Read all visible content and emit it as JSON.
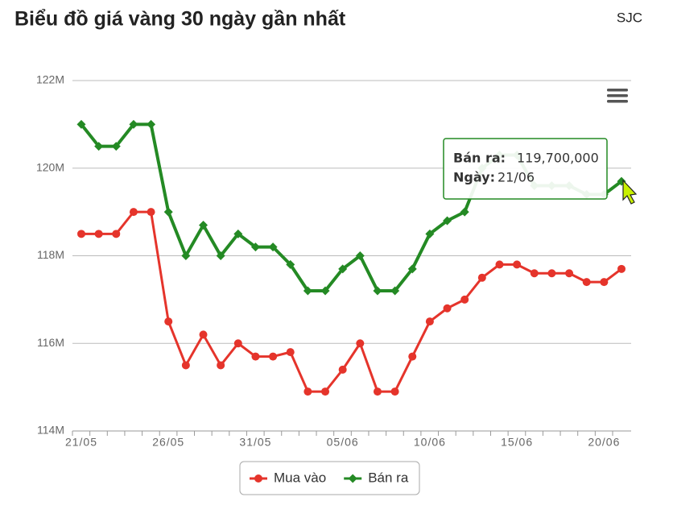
{
  "header": {
    "title": "Biểu đồ giá vàng 30 ngày gần nhất",
    "source": "SJC"
  },
  "chart_data": {
    "type": "line",
    "categories": [
      "21/05",
      null,
      null,
      null,
      null,
      "26/05",
      null,
      null,
      null,
      null,
      "31/05",
      null,
      null,
      null,
      null,
      "05/06",
      null,
      null,
      null,
      null,
      "10/06",
      null,
      null,
      null,
      null,
      "15/06",
      null,
      null,
      null,
      null,
      "20/06",
      null
    ],
    "series": [
      {
        "name": "Mua vào",
        "color": "#e5342b",
        "marker": "circle",
        "values": [
          118.5,
          118.5,
          118.5,
          119.0,
          119.0,
          116.5,
          115.5,
          116.2,
          115.5,
          116.0,
          115.7,
          115.7,
          115.8,
          114.9,
          114.9,
          115.4,
          116.0,
          114.9,
          114.9,
          115.7,
          116.5,
          116.8,
          117.0,
          117.5,
          117.8,
          117.8,
          117.6,
          117.6,
          117.6,
          117.4,
          117.4,
          117.7
        ]
      },
      {
        "name": "Bán ra",
        "color": "#248a24",
        "marker": "diamond",
        "values": [
          121.0,
          120.5,
          120.5,
          121.0,
          121.0,
          119.0,
          118.0,
          118.7,
          118.0,
          118.5,
          118.2,
          118.2,
          117.8,
          117.2,
          117.2,
          117.7,
          118.0,
          117.2,
          117.2,
          117.7,
          118.5,
          118.8,
          119.0,
          120.0,
          120.3,
          120.3,
          119.6,
          119.6,
          119.6,
          119.4,
          119.4,
          119.7
        ]
      }
    ],
    "ylim": [
      114,
      122
    ],
    "yticks": [
      {
        "value": 114,
        "label": "114M"
      },
      {
        "value": 116,
        "label": "116M"
      },
      {
        "value": 118,
        "label": "118M"
      },
      {
        "value": 120,
        "label": "120M"
      },
      {
        "value": 122,
        "label": "122M"
      }
    ],
    "grid": true,
    "legend": "bottom",
    "tooltip": {
      "key": "Bán ra:",
      "value": "119,700,000",
      "date_key": "Ngày:",
      "date": "21/06"
    }
  }
}
